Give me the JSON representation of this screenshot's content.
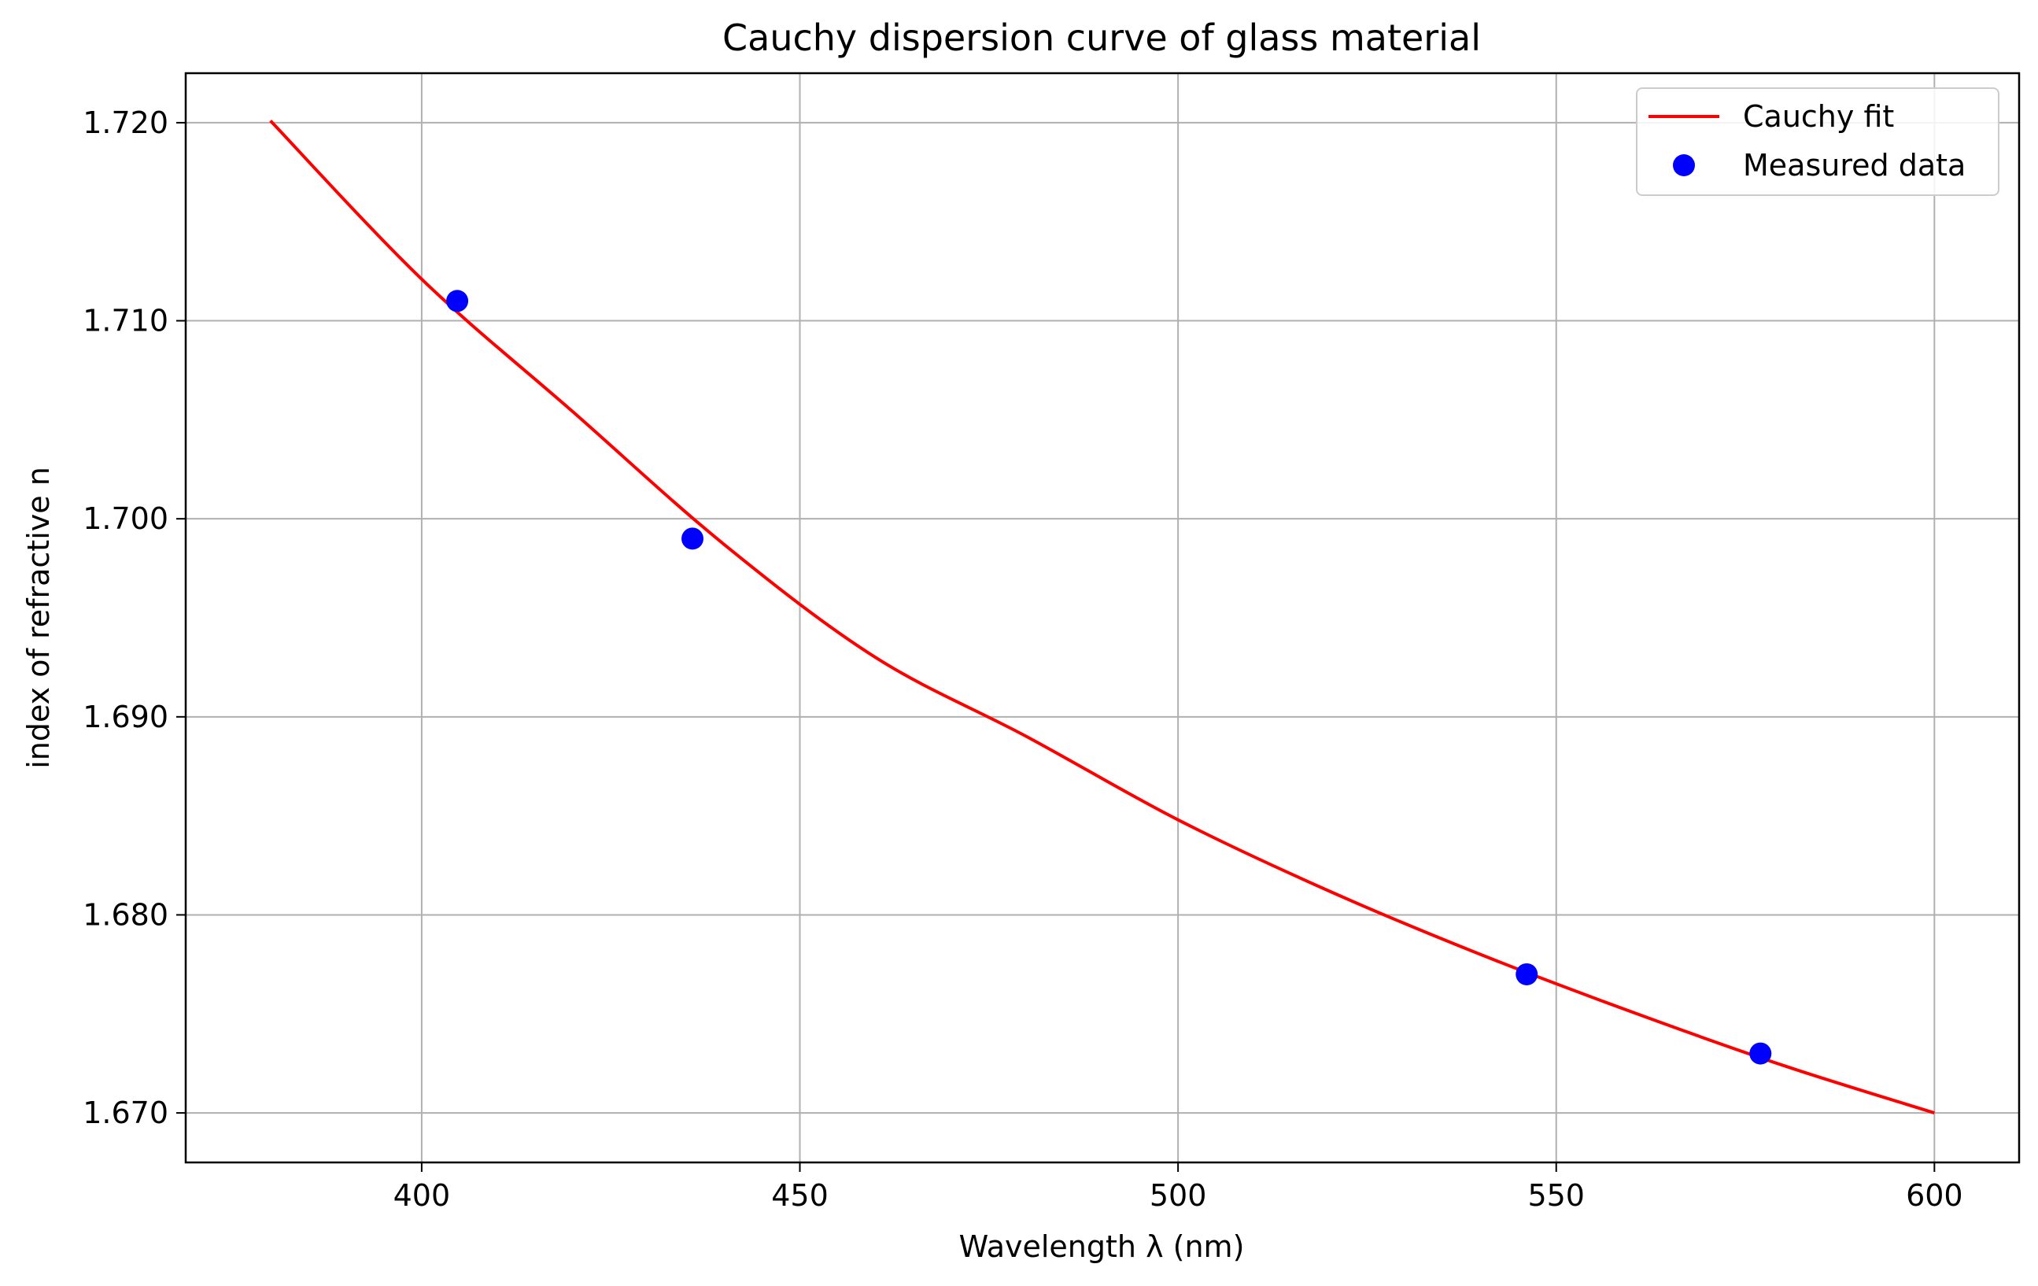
{
  "chart_data": {
    "type": "line",
    "title": "Cauchy dispersion curve of glass material",
    "xlabel": "Wavelength λ (nm)",
    "ylabel": "index of refractive n",
    "xlim": [
      368.8,
      611.2
    ],
    "ylim": [
      1.6675,
      1.7225
    ],
    "grid": true,
    "legend_position": "top-right",
    "x_ticks": [
      400,
      450,
      500,
      550,
      600
    ],
    "x_tick_labels": [
      "400",
      "450",
      "500",
      "550",
      "600"
    ],
    "y_ticks": [
      1.67,
      1.68,
      1.69,
      1.7,
      1.71,
      1.72
    ],
    "y_tick_labels": [
      "1.670",
      "1.680",
      "1.690",
      "1.700",
      "1.710",
      "1.720"
    ],
    "series": [
      {
        "name": "Cauchy fit",
        "kind": "line",
        "color": "#ff0000",
        "x": [
          380,
          400,
          420,
          440,
          460,
          480,
          500,
          520,
          540,
          560,
          580,
          600
        ],
        "y": [
          1.7201,
          1.7121,
          1.7054,
          1.6987,
          1.693,
          1.689,
          1.6848,
          1.6812,
          1.678,
          1.6751,
          1.6724,
          1.67
        ]
      },
      {
        "name": "Measured data",
        "kind": "scatter",
        "color": "#0000ff",
        "x": [
          404.7,
          435.8,
          546.1,
          577.0
        ],
        "y": [
          1.711,
          1.699,
          1.677,
          1.673
        ]
      }
    ]
  }
}
